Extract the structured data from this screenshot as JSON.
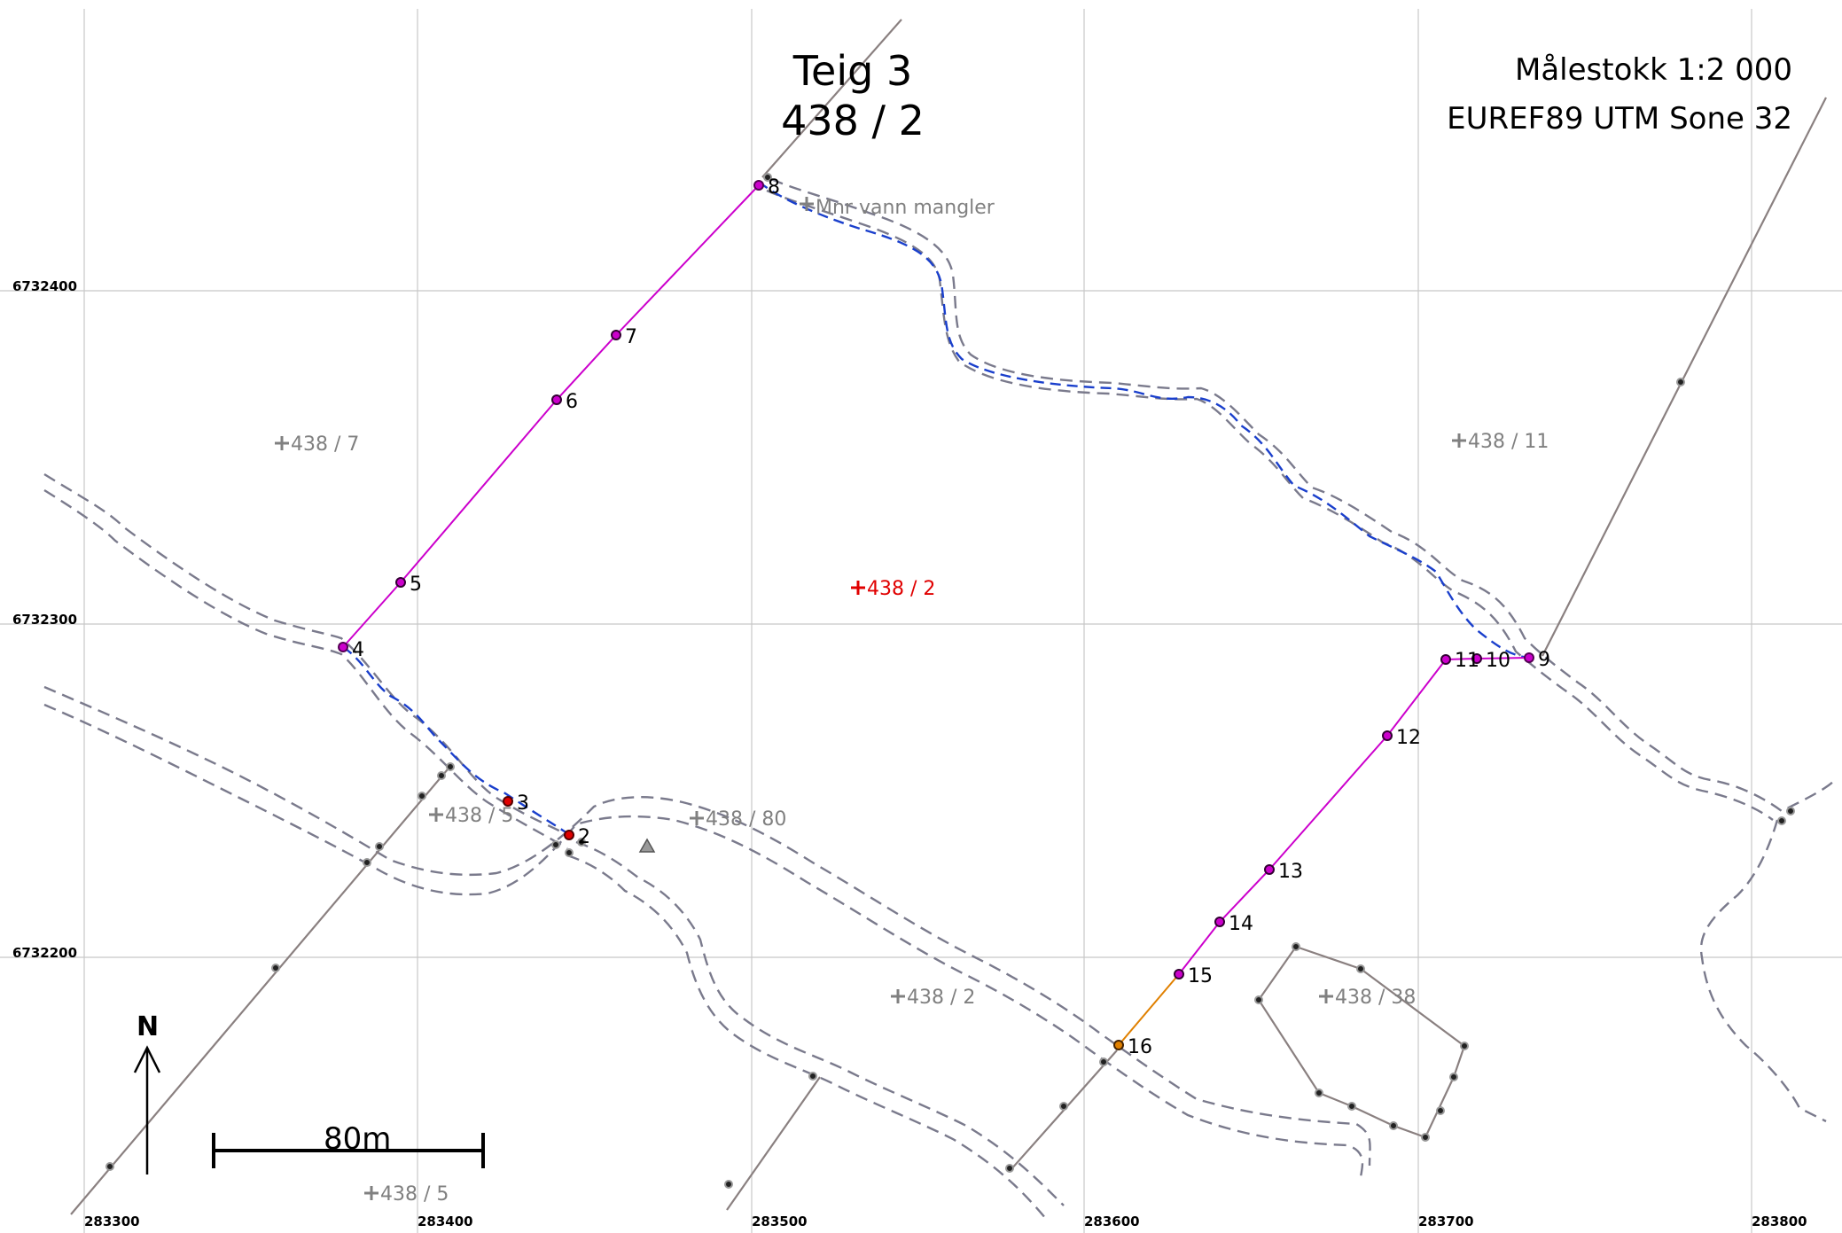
{
  "title": {
    "line1": "Teig 3",
    "line2": "438 / 2"
  },
  "scale": {
    "text": "Målestokk 1:2 000",
    "crs": "EUREF89 UTM Sone 32"
  },
  "grid": {
    "x_labels": [
      "283300",
      "283400",
      "283500",
      "283600",
      "283700",
      "283800"
    ],
    "y_labels": [
      "6732400",
      "6732300",
      "6732200"
    ]
  },
  "north_arrow": {
    "label": "N"
  },
  "scale_bar": {
    "label": "80m"
  },
  "parcel_labels": [
    {
      "text": "438 / 7",
      "active": false
    },
    {
      "text": "438 / 11",
      "active": false
    },
    {
      "text": "438 / 2",
      "active": true
    },
    {
      "text": "438 / 5",
      "active": false
    },
    {
      "text": "438 / 80",
      "active": false
    },
    {
      "text": "438 / 2",
      "active": false
    },
    {
      "text": "438 / 38",
      "active": false
    },
    {
      "text": "438 / 5",
      "active": false
    },
    {
      "text": "Mnr vann mangler",
      "active": false
    }
  ],
  "boundary_points": [
    "2",
    "3",
    "4",
    "5",
    "6",
    "7",
    "8",
    "9",
    "10",
    "11",
    "12",
    "13",
    "14",
    "15",
    "16"
  ],
  "colors": {
    "boundary": "#cc00cc",
    "water_line": "#1a3fcc",
    "road_edge": "#7a7a8c",
    "fence": "#8a8080",
    "orange_segment": "#e08000",
    "active_label": "#e00000",
    "grid": "#c8c8c8"
  }
}
